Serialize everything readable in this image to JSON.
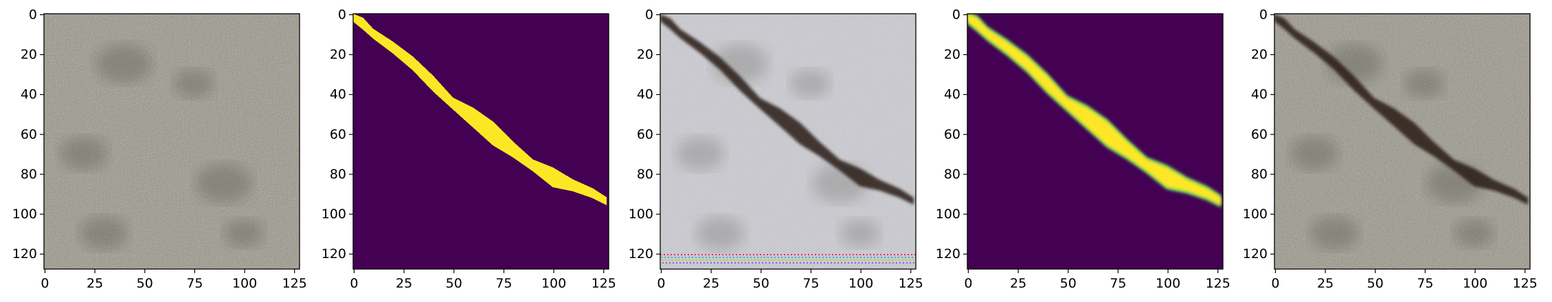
{
  "figure": {
    "panels": [
      {
        "id": "input-image",
        "kind": "photo-texture"
      },
      {
        "id": "ground-truth-mask",
        "kind": "mask"
      },
      {
        "id": "reconstruction",
        "kind": "noisy-photo"
      },
      {
        "id": "predicted-mask",
        "kind": "soft-mask"
      },
      {
        "id": "overlay",
        "kind": "photo-with-crack"
      }
    ],
    "x_ticks": [
      "0",
      "25",
      "50",
      "75",
      "100",
      "125"
    ],
    "y_ticks": [
      "0",
      "20",
      "40",
      "60",
      "80",
      "100",
      "120"
    ],
    "x_tick_values": [
      0,
      25,
      50,
      75,
      100,
      125
    ],
    "y_tick_values": [
      0,
      20,
      40,
      60,
      80,
      100,
      120
    ],
    "image_extent": 128,
    "crack_path": [
      [
        0,
        2
      ],
      [
        5,
        5
      ],
      [
        10,
        10
      ],
      [
        20,
        17
      ],
      [
        30,
        25
      ],
      [
        40,
        35
      ],
      [
        50,
        45
      ],
      [
        60,
        52
      ],
      [
        70,
        60
      ],
      [
        80,
        68
      ],
      [
        90,
        76
      ],
      [
        100,
        82
      ],
      [
        110,
        86
      ],
      [
        120,
        90
      ],
      [
        127,
        94
      ]
    ],
    "colors": {
      "mask_background": "#440154",
      "mask_foreground": "#fde725",
      "mask_mid": "#5ec962",
      "stone_base": "#9c998c",
      "crack_dark": "#2a1d17"
    }
  }
}
